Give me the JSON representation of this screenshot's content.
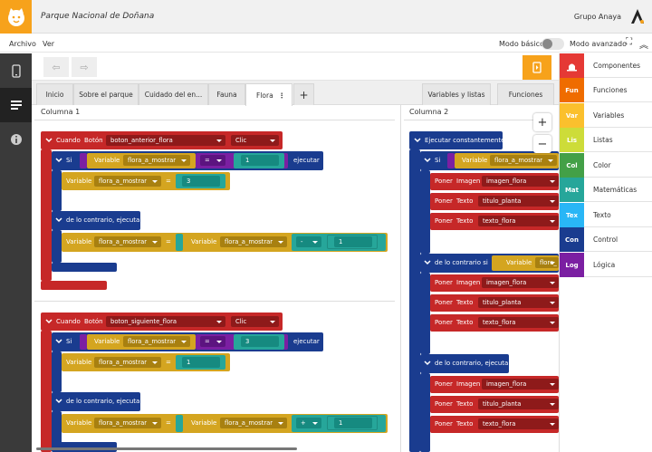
{
  "header": {
    "title": "Parque Nacional de Doñana",
    "brand": "Grupo Anaya"
  },
  "menubar": {
    "items": [
      "Archivo",
      "Ver"
    ],
    "mode_basic": "Modo básico",
    "mode_advanced": "Modo avanzado"
  },
  "tabs": [
    "Inicio",
    "Sobre el parque",
    "Cuidado del en...",
    "Fauna",
    "Flora"
  ],
  "tab_menu_glyph": "⋮",
  "add_tab_glyph": "+",
  "right_tabs": [
    "Variables y listas",
    "Funciones"
  ],
  "columns": [
    "Columna 1",
    "Columna 2"
  ],
  "zoom": {
    "in": "+",
    "out": "−"
  },
  "palette": [
    {
      "code": "",
      "label": "Componentes",
      "color": "#e53935"
    },
    {
      "code": "Fun",
      "label": "Funciones",
      "color": "#ef6c00"
    },
    {
      "code": "Var",
      "label": "Variables",
      "color": "#fbc02d"
    },
    {
      "code": "Lis",
      "label": "Listas",
      "color": "#cddc39"
    },
    {
      "code": "Col",
      "label": "Color",
      "color": "#43a047"
    },
    {
      "code": "Mat",
      "label": "Matemáticas",
      "color": "#26a69a"
    },
    {
      "code": "Tex",
      "label": "Texto",
      "color": "#29b6f6"
    },
    {
      "code": "Con",
      "label": "Control",
      "color": "#1a3c8f"
    },
    {
      "code": "Log",
      "label": "Lógica",
      "color": "#7b1fa2"
    }
  ],
  "blocks": {
    "when": "Cuando",
    "button": "Botón",
    "click": "Clic",
    "btn1": "boton_anterior_flora",
    "btn2": "boton_siguiente_flora",
    "if": "Si",
    "variable": "Variable",
    "var_name": "flora_a_mostrar",
    "eq": "=",
    "assign": "=",
    "then": "ejecutar",
    "else": "de lo contrario, ejecutar",
    "elseif": "de lo contrario si",
    "minus": "-",
    "plus": "+",
    "v1": "1",
    "v3": "3",
    "forever": "Ejecutar constantemente",
    "set": "Poner",
    "image": "Imagen",
    "text": "Texto",
    "img_name": "imagen_flora",
    "title_name": "titulo_planta",
    "text_name": "texto_flora",
    "var_cut": "flora_"
  }
}
